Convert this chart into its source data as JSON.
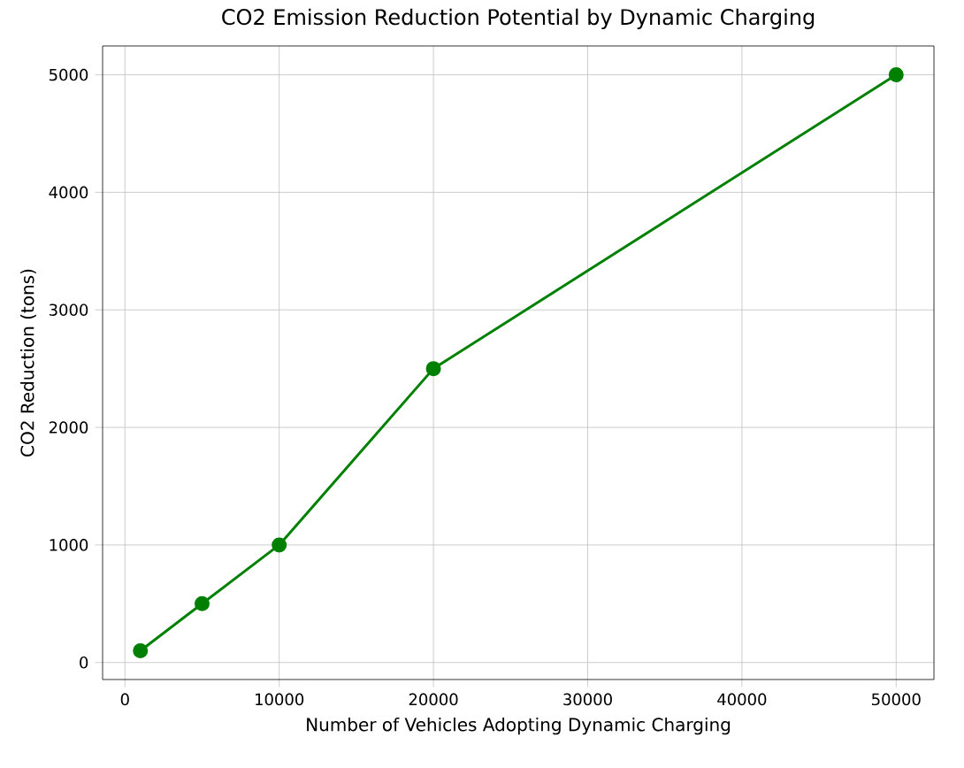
{
  "chart_data": {
    "type": "line",
    "title": "CO2 Emission Reduction Potential by Dynamic Charging",
    "xlabel": "Number of Vehicles Adopting Dynamic Charging",
    "ylabel": "CO2 Reduction (tons)",
    "x": [
      1000,
      5000,
      10000,
      20000,
      50000
    ],
    "series": [
      {
        "color": "#008000",
        "values": [
          100,
          500,
          1000,
          2500,
          5000
        ]
      }
    ],
    "xlim": [
      -1450,
      52450
    ],
    "ylim": [
      -145,
      5245
    ],
    "xticks": [
      0,
      10000,
      20000,
      30000,
      40000,
      50000
    ],
    "yticks": [
      0,
      1000,
      2000,
      3000,
      4000,
      5000
    ],
    "grid": true,
    "marker": "circle",
    "line_style": "solid"
  }
}
